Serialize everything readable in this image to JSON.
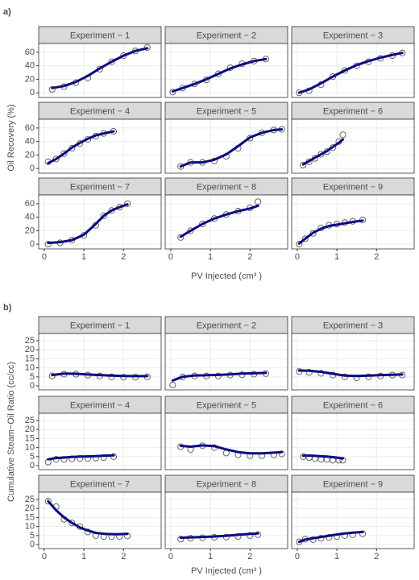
{
  "chart_data": [
    {
      "type": "line",
      "panel_label": "a)",
      "xlabel": "PV Injected (cm³ )",
      "ylabel": "Oil Recovery (%)",
      "xlim": [
        -0.14,
        2.95
      ],
      "xticks": [
        0,
        1,
        2
      ],
      "ylim": [
        -7,
        73
      ],
      "yticks": [
        0,
        20,
        40,
        60
      ],
      "grid": true,
      "point_color": "#555555",
      "line_color": "#0b0b82",
      "facets": [
        {
          "title": "Experiment − 1",
          "x": [
            0.2,
            0.5,
            0.8,
            1.1,
            1.4,
            1.7,
            2.0,
            2.3,
            2.6
          ],
          "observed": [
            5,
            9,
            15,
            22,
            35,
            46,
            55,
            62,
            67
          ],
          "fit": [
            7,
            10,
            16,
            25,
            36,
            46,
            55,
            62,
            66
          ]
        },
        {
          "title": "Experiment − 2",
          "x": [
            0.05,
            0.3,
            0.6,
            0.9,
            1.2,
            1.5,
            1.8,
            2.1,
            2.4
          ],
          "observed": [
            1,
            7,
            13,
            19,
            28,
            37,
            43,
            47,
            50
          ],
          "fit": [
            2,
            7,
            13,
            20,
            28,
            36,
            42,
            47,
            50
          ]
        },
        {
          "title": "Experiment − 3",
          "x": [
            0.05,
            0.3,
            0.6,
            0.9,
            1.2,
            1.5,
            1.8,
            2.1,
            2.4,
            2.65
          ],
          "observed": [
            0,
            3,
            12,
            24,
            33,
            40,
            46,
            51,
            55,
            59
          ],
          "fit": [
            0,
            5,
            14,
            24,
            33,
            41,
            47,
            52,
            56,
            59
          ]
        },
        {
          "title": "Experiment − 4",
          "x": [
            0.1,
            0.3,
            0.5,
            0.7,
            0.9,
            1.1,
            1.3,
            1.5,
            1.75
          ],
          "observed": [
            10,
            14,
            22,
            30,
            37,
            43,
            48,
            52,
            55
          ],
          "fit": [
            8,
            14,
            22,
            31,
            38,
            44,
            49,
            52,
            55
          ]
        },
        {
          "title": "Experiment − 5",
          "x": [
            0.25,
            0.5,
            0.8,
            1.1,
            1.4,
            1.7,
            2.0,
            2.3,
            2.6,
            2.8
          ],
          "observed": [
            3,
            9,
            9,
            11,
            18,
            30,
            45,
            53,
            57,
            58
          ],
          "fit": [
            3,
            9,
            9,
            13,
            21,
            33,
            46,
            53,
            57,
            58
          ]
        },
        {
          "title": "Experiment − 6",
          "x": [
            0.15,
            0.3,
            0.45,
            0.6,
            0.75,
            0.9,
            1.05,
            1.15
          ],
          "observed": [
            5,
            10,
            15,
            21,
            25,
            31,
            40,
            50
          ],
          "fit": [
            6,
            11,
            16,
            21,
            26,
            32,
            38,
            43
          ]
        },
        {
          "title": "Experiment − 7",
          "x": [
            0.1,
            0.4,
            0.7,
            1.0,
            1.3,
            1.5,
            1.7,
            1.9,
            2.1
          ],
          "observed": [
            0,
            2,
            6,
            13,
            28,
            42,
            50,
            55,
            60
          ],
          "fit": [
            2,
            3,
            6,
            14,
            30,
            42,
            50,
            55,
            59
          ]
        },
        {
          "title": "Experiment − 8",
          "x": [
            0.25,
            0.5,
            0.8,
            1.1,
            1.4,
            1.7,
            2.0,
            2.2
          ],
          "observed": [
            10,
            20,
            30,
            38,
            44,
            49,
            54,
            63
          ],
          "fit": [
            11,
            20,
            30,
            38,
            44,
            49,
            53,
            57
          ]
        },
        {
          "title": "Experiment − 9",
          "x": [
            0.05,
            0.2,
            0.4,
            0.6,
            0.8,
            1.0,
            1.2,
            1.4,
            1.65
          ],
          "observed": [
            0,
            8,
            16,
            24,
            28,
            30,
            32,
            34,
            36
          ],
          "fit": [
            1,
            8,
            17,
            23,
            27,
            29,
            31,
            33,
            35
          ]
        }
      ]
    },
    {
      "type": "line",
      "panel_label": "b)",
      "xlabel": "PV Injected (cm³ )",
      "ylabel": "Cumulative Steam−Oil Ratio (cc/cc)",
      "xlim": [
        -0.14,
        2.95
      ],
      "xticks": [
        0,
        1,
        2
      ],
      "ylim": [
        -2.2,
        29
      ],
      "yticks": [
        0,
        5,
        10,
        15,
        20,
        25
      ],
      "grid": true,
      "point_color": "#555555",
      "line_color": "#0b0b82",
      "facets": [
        {
          "title": "Experiment − 1",
          "x": [
            0.2,
            0.5,
            0.8,
            1.1,
            1.4,
            1.7,
            2.0,
            2.3,
            2.6
          ],
          "observed": [
            5.5,
            6.5,
            6.5,
            6,
            5.5,
            5,
            4.8,
            4.8,
            5
          ],
          "fit": [
            6,
            6.8,
            6.7,
            6.3,
            6,
            5.7,
            5.5,
            5.4,
            5.4
          ]
        },
        {
          "title": "Experiment − 2",
          "x": [
            0.05,
            0.3,
            0.6,
            0.9,
            1.2,
            1.5,
            1.8,
            2.1,
            2.4
          ],
          "observed": [
            0.5,
            5,
            5.5,
            5.5,
            5.5,
            6,
            6.2,
            6.5,
            6.8
          ],
          "fit": [
            3,
            5,
            5.8,
            5.9,
            6.1,
            6.4,
            6.8,
            7,
            7.2
          ]
        },
        {
          "title": "Experiment − 3",
          "x": [
            0.05,
            0.3,
            0.6,
            0.9,
            1.2,
            1.5,
            1.8,
            2.1,
            2.4,
            2.65
          ],
          "observed": [
            8,
            7.5,
            7,
            6,
            5,
            4.5,
            5,
            5.5,
            6,
            6
          ],
          "fit": [
            8.5,
            8.4,
            7.8,
            6.7,
            5.7,
            5.5,
            5.7,
            6,
            6.2,
            6.3
          ]
        },
        {
          "title": "Experiment − 4",
          "x": [
            0.1,
            0.3,
            0.5,
            0.7,
            0.9,
            1.1,
            1.3,
            1.5,
            1.75
          ],
          "observed": [
            2,
            3.5,
            3.5,
            3.8,
            4,
            4,
            4.2,
            4.5,
            5
          ],
          "fit": [
            3.5,
            4.2,
            4.5,
            4.8,
            5,
            5.1,
            5.3,
            5.5,
            5.7
          ]
        },
        {
          "title": "Experiment − 5",
          "x": [
            0.25,
            0.5,
            0.8,
            1.1,
            1.4,
            1.7,
            2.0,
            2.3,
            2.6,
            2.8
          ],
          "observed": [
            10.5,
            9,
            11,
            10,
            7,
            6,
            5.5,
            5.5,
            6,
            6.5
          ],
          "fit": [
            11,
            10.5,
            11.2,
            10.8,
            9,
            7.5,
            6.8,
            6.8,
            7.2,
            7.5
          ]
        },
        {
          "title": "Experiment − 6",
          "x": [
            0.15,
            0.3,
            0.45,
            0.6,
            0.75,
            0.9,
            1.05,
            1.15
          ],
          "observed": [
            5,
            4.5,
            4,
            3.5,
            3.5,
            3,
            3,
            3
          ],
          "fit": [
            5.5,
            5.6,
            5.4,
            5.2,
            5,
            4.7,
            4.3,
            4
          ]
        },
        {
          "title": "Experiment − 7",
          "x": [
            0.1,
            0.3,
            0.5,
            0.7,
            0.9,
            1.1,
            1.3,
            1.5,
            1.7,
            1.9,
            2.1
          ],
          "observed": [
            24,
            21,
            14,
            12,
            10,
            7,
            5,
            4.5,
            4.5,
            4.5,
            4.8
          ],
          "fit": [
            24,
            19,
            15,
            12,
            9.5,
            7.8,
            6.5,
            6,
            5.8,
            5.8,
            6
          ]
        },
        {
          "title": "Experiment − 8",
          "x": [
            0.25,
            0.5,
            0.8,
            1.1,
            1.4,
            1.7,
            2.0,
            2.2
          ],
          "observed": [
            3,
            3.5,
            3.8,
            4,
            4.2,
            4.5,
            5,
            5.5
          ],
          "fit": [
            3.8,
            4,
            4.2,
            4.5,
            4.9,
            5.4,
            5.9,
            6.2
          ]
        },
        {
          "title": "Experiment − 9",
          "x": [
            0.05,
            0.2,
            0.4,
            0.6,
            0.8,
            1.0,
            1.2,
            1.4,
            1.65
          ],
          "observed": [
            1.5,
            3,
            2.8,
            3.5,
            4,
            4.5,
            5,
            5.5,
            6
          ],
          "fit": [
            1.5,
            2.8,
            3.5,
            4.2,
            4.9,
            5.6,
            6.2,
            6.6,
            7
          ]
        }
      ]
    }
  ]
}
